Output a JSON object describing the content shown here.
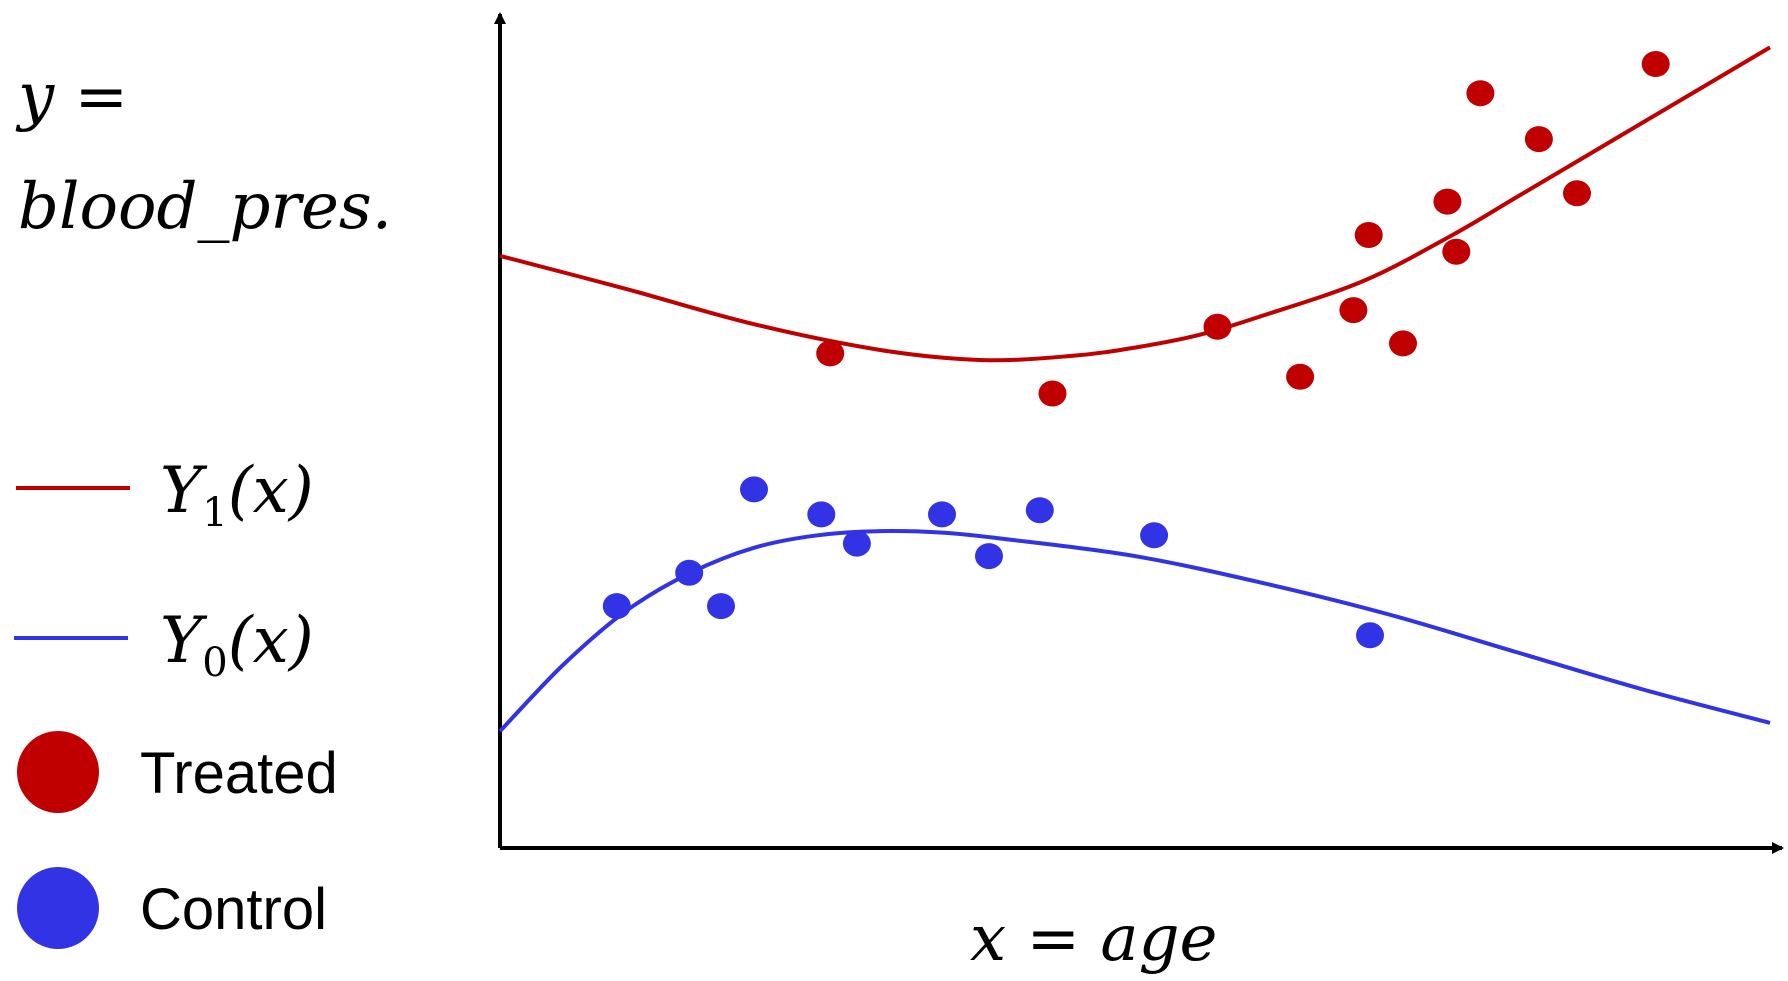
{
  "y_label": {
    "line1": "y =",
    "line2": "blood_pres."
  },
  "x_label": "x = age",
  "legend": {
    "y1": {
      "base": "Y",
      "sub": "1",
      "arg": "(x)",
      "color": "#c00000"
    },
    "y0": {
      "base": "Y",
      "sub": "0",
      "arg": "(x)",
      "color": "#3333e6"
    },
    "treated": {
      "label": "Treated",
      "color": "#c00000"
    },
    "control": {
      "label": "Control",
      "color": "#3333e6"
    }
  },
  "colors": {
    "axis": "#000000",
    "treated": "#c00000",
    "control": "#3333e6"
  },
  "chart_data": {
    "type": "scatter",
    "xlabel": "x = age",
    "ylabel": "y = blood_pres.",
    "series": [
      {
        "name": "Y1(x)",
        "kind": "curve",
        "color": "#c00000",
        "x": [
          0,
          0.1,
          0.2,
          0.3,
          0.38,
          0.45,
          0.5,
          0.55,
          0.6,
          0.68,
          0.75,
          0.8,
          0.85,
          0.9,
          0.95,
          1.0
        ],
        "y": [
          0.71,
          0.67,
          0.628,
          0.597,
          0.585,
          0.59,
          0.6,
          0.615,
          0.638,
          0.68,
          0.735,
          0.78,
          0.825,
          0.87,
          0.915,
          0.96
        ]
      },
      {
        "name": "Y0(x)",
        "kind": "curve",
        "color": "#3333e6",
        "x": [
          0,
          0.05,
          0.1,
          0.15,
          0.2,
          0.25,
          0.3,
          0.35,
          0.4,
          0.5,
          0.6,
          0.7,
          0.8,
          0.9,
          1.0
        ],
        "y": [
          0.14,
          0.22,
          0.285,
          0.33,
          0.36,
          0.375,
          0.38,
          0.378,
          0.37,
          0.35,
          0.318,
          0.28,
          0.235,
          0.19,
          0.15
        ]
      },
      {
        "name": "Treated",
        "kind": "points",
        "color": "#c00000",
        "x": [
          0.26,
          0.435,
          0.565,
          0.63,
          0.672,
          0.684,
          0.711,
          0.746,
          0.753,
          0.772,
          0.818,
          0.848,
          0.91
        ],
        "y": [
          0.593,
          0.545,
          0.625,
          0.565,
          0.645,
          0.735,
          0.605,
          0.775,
          0.715,
          0.905,
          0.85,
          0.785,
          0.94
        ]
      },
      {
        "name": "Control",
        "kind": "points",
        "color": "#3333e6",
        "x": [
          0.092,
          0.149,
          0.174,
          0.2,
          0.253,
          0.281,
          0.348,
          0.385,
          0.425,
          0.515,
          0.685
        ],
        "y": [
          0.29,
          0.33,
          0.29,
          0.43,
          0.4,
          0.365,
          0.4,
          0.35,
          0.405,
          0.375,
          0.255
        ]
      }
    ]
  }
}
